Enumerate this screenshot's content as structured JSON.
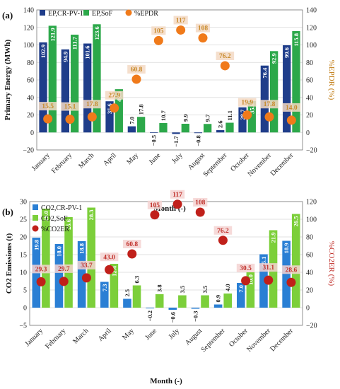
{
  "chart_data": [
    {
      "type": "bar",
      "panel_label": "(a)",
      "categories": [
        "January",
        "February",
        "March",
        "April",
        "May",
        "June",
        "July",
        "August",
        "September",
        "October",
        "November",
        "December"
      ],
      "xlabel": "Month (-)",
      "ylabel": "Primary Energy (MWh)",
      "ylabel_right": "%EPDR (%)",
      "ylim": [
        -20,
        140
      ],
      "ylim_right": [
        -20,
        140
      ],
      "yticks": [
        -20,
        0,
        20,
        40,
        60,
        80,
        100,
        120,
        140
      ],
      "yticks_right": [
        -20,
        0,
        20,
        40,
        60,
        80,
        100,
        120,
        140
      ],
      "grid": true,
      "legend_position": "top",
      "colors": {
        "series1": "#1f3d8a",
        "series2": "#2ca84a",
        "marker": "#f07a1a",
        "marker_text": "#c88a2a",
        "right_axis": "#c07a10"
      },
      "series": [
        {
          "name": "EP,CR-PV-1",
          "values": [
            102.9,
            94.9,
            101.6,
            35.6,
            7.0,
            -0.5,
            -1.7,
            -0.8,
            2.6,
            28.7,
            76.4,
            99.6
          ],
          "labels": [
            "102.9",
            "94.9",
            "101.6",
            "35.6",
            "7.0",
            "−0.5",
            "−1.7",
            "−0.8",
            "2.6",
            "28.7",
            "76.4",
            "99.6"
          ]
        },
        {
          "name": "EP,SoF",
          "values": [
            121.9,
            111.7,
            123.6,
            49.4,
            17.8,
            10.7,
            9.9,
            9.7,
            11.1,
            35.8,
            92.9,
            115.8
          ],
          "labels": [
            "121.9",
            "111.7",
            "123.6",
            "49.4",
            "17.8",
            "10.7",
            "9.9",
            "9.7",
            "11.1",
            "35.8",
            "92.9",
            "115.8"
          ]
        },
        {
          "name": "%EPDR",
          "values": [
            15.5,
            15.1,
            17.8,
            27.9,
            60.8,
            105,
            117,
            108,
            76.2,
            19.9,
            17.8,
            14.0
          ],
          "labels": [
            "15.5",
            "15.1",
            "17.8",
            "27.9",
            "60.8",
            "105",
            "117",
            "108",
            "76.2",
            "19.9",
            "17.8",
            "14.0"
          ]
        }
      ]
    },
    {
      "type": "bar",
      "panel_label": "(b)",
      "categories": [
        "January",
        "February",
        "March",
        "April",
        "May",
        "June",
        "July",
        "August",
        "September",
        "October",
        "November",
        "December"
      ],
      "xlabel": "Month (-)",
      "ylabel": "CO2 Emissions (t)",
      "ylabel_right": "%CO2ER (%)",
      "ylim": [
        -5,
        30
      ],
      "ylim_right": [
        -20,
        120
      ],
      "yticks": [
        -5,
        0,
        5,
        10,
        15,
        20,
        25,
        30
      ],
      "yticks_right": [
        -20,
        0,
        20,
        40,
        60,
        80,
        100,
        120
      ],
      "grid": true,
      "legend_position": "top-left",
      "colors": {
        "series1": "#2a7fd4",
        "series2": "#7ccf3a",
        "marker": "#c0201a",
        "marker_text": "#c0302a",
        "right_axis": "#c0302a"
      },
      "series": [
        {
          "name": "CO2,CR-PV-1",
          "values": [
            19.8,
            18.0,
            18.8,
            7.3,
            2.5,
            -0.2,
            -0.6,
            -0.3,
            0.9,
            7.0,
            15.1,
            18.9
          ],
          "labels": [
            "19.8",
            "18.0",
            "18.8",
            "7.3",
            "2.5",
            "−0.2",
            "−0.6",
            "−0.3",
            "0.9",
            "7.0",
            "15.1",
            "18.9"
          ]
        },
        {
          "name": "CO2,SoF",
          "values": [
            28.0,
            25.6,
            28.3,
            12.4,
            6.3,
            3.8,
            3.5,
            3.5,
            4.0,
            10.0,
            21.9,
            26.5
          ],
          "labels": [
            "28.0",
            "25.6",
            "28.3",
            "12.4",
            "6.3",
            "3.8",
            "3.5",
            "3.5",
            "4.0",
            "10.0",
            "21.9",
            "26.5"
          ]
        },
        {
          "name": "%CO2ER",
          "values": [
            29.3,
            29.7,
            33.7,
            43.0,
            60.8,
            105,
            117,
            108,
            76.2,
            30.5,
            31.1,
            28.6
          ],
          "labels": [
            "29.3",
            "29.7",
            "33.7",
            "43.0",
            "60.8",
            "105",
            "117",
            "108",
            "76.2",
            "30.5",
            "31.1",
            "28.6"
          ]
        }
      ]
    }
  ]
}
